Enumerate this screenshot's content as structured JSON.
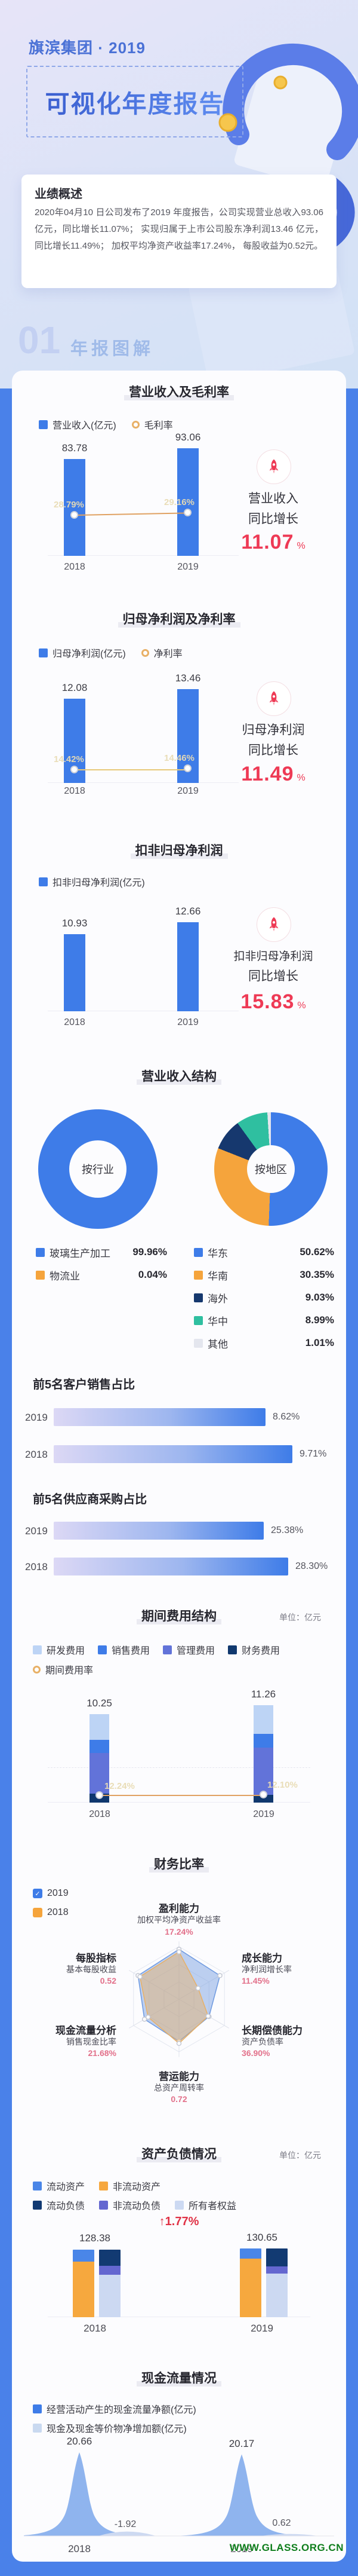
{
  "header": {
    "brand": "旗滨集团 · 2019",
    "title": "可视化年度报告"
  },
  "overview": {
    "heading": "业绩概述",
    "body": "2020年04月10 日公司发布了2019 年度报告，公司实现营业总收入93.06亿元，同比增长11.07%； 实现归属于上市公司股东净利润13.46 亿元，同比增长11.49%； 加权平均净资产收益率17.24%， 每股收益为0.52元。"
  },
  "badge": {
    "num": "01",
    "label": "年报图解"
  },
  "watermark": "WWW.GLASS.ORG.CN",
  "accent_colors": {
    "red": "#ee3a55",
    "blue": "#3e7ce8",
    "orange": "#f5a43c",
    "frame_blue": "#4a81e9"
  },
  "chart_data": [
    {
      "type": "bar",
      "title": "营业收入及毛利率",
      "legend": [
        "营业收入(亿元)",
        "毛利率"
      ],
      "bar_color": "#3e7ce8",
      "line_color": "#e0a263",
      "categories": [
        "2018",
        "2019"
      ],
      "bars": [
        83.78,
        93.06
      ],
      "line_labels": [
        "28.79%",
        "29.16%"
      ],
      "highlight": {
        "line1": "营业收入",
        "line2": "同比增长",
        "value": "11.07",
        "unit": "%"
      }
    },
    {
      "type": "bar",
      "title": "归母净利润及净利率",
      "legend": [
        "归母净利润(亿元)",
        "净利率"
      ],
      "bar_color": "#3e7ce8",
      "line_color": "#e8c878",
      "categories": [
        "2018",
        "2019"
      ],
      "bars": [
        12.08,
        13.46
      ],
      "line_labels": [
        "14.42%",
        "14.46%"
      ],
      "highlight": {
        "line1": "归母净利润",
        "line2": "同比增长",
        "value": "11.49",
        "unit": "%"
      }
    },
    {
      "type": "bar",
      "title": "扣非归母净利润",
      "legend": [
        "扣非归母净利润(亿元)"
      ],
      "bar_color": "#3e7ce8",
      "categories": [
        "2018",
        "2019"
      ],
      "bars": [
        10.93,
        12.66
      ],
      "highlight": {
        "line1": "扣非归母净利润",
        "line2": "同比增长",
        "value": "15.83",
        "unit": "%"
      }
    },
    {
      "type": "pie",
      "title": "营业收入结构",
      "donuts": [
        {
          "center": "按行业",
          "slices": [
            {
              "label": "玻璃生产加工",
              "pct": "99.96%",
              "value": 99.96,
              "color": "#3e7ce8"
            },
            {
              "label": "物流业",
              "pct": "0.04%",
              "value": 0.04,
              "color": "#f5a43c"
            }
          ]
        },
        {
          "center": "按地区",
          "slices": [
            {
              "label": "华东",
              "pct": "50.62%",
              "value": 50.62,
              "color": "#3e7ce8"
            },
            {
              "label": "华南",
              "pct": "30.35%",
              "value": 30.35,
              "color": "#f5a43c"
            },
            {
              "label": "海外",
              "pct": "9.03%",
              "value": 9.03,
              "color": "#16386e"
            },
            {
              "label": "华中",
              "pct": "8.99%",
              "value": 8.99,
              "color": "#2fbfa0"
            },
            {
              "label": "其他",
              "pct": "1.01%",
              "value": 1.01,
              "color": "#e4e6ee"
            }
          ]
        }
      ]
    },
    {
      "type": "bar",
      "title": "前5名客户销售占比",
      "rows": [
        {
          "year": "2019",
          "pct": "8.62%",
          "value": 8.62
        },
        {
          "year": "2018",
          "pct": "9.71%",
          "value": 9.71
        }
      ]
    },
    {
      "type": "bar",
      "title": "前5名供应商采购占比",
      "rows": [
        {
          "year": "2019",
          "pct": "25.38%",
          "value": 25.38
        },
        {
          "year": "2018",
          "pct": "28.30%",
          "value": 28.3
        }
      ]
    },
    {
      "type": "bar",
      "title": "期间费用结构",
      "unit": "单位：亿元",
      "legend": [
        "研发费用",
        "销售费用",
        "管理费用",
        "财务费用",
        "期间费用率"
      ],
      "colors": [
        "#bdd4f5",
        "#3e7ce8",
        "#6273d9",
        "#10386e"
      ],
      "line_color": "#e0a263",
      "categories": [
        "2018",
        "2019"
      ],
      "totals": [
        10.25,
        11.26
      ],
      "segments": [
        [
          2.99,
          1.49,
          4.74,
          1.03
        ],
        [
          3.3,
          1.62,
          5.45,
          0.89
        ]
      ],
      "line_labels": [
        "12.24%",
        "12.10%"
      ]
    },
    {
      "type": "radar",
      "title": "财务比率",
      "legend": [
        "2019",
        "2018"
      ],
      "legend_colors": [
        "#3e7ce8",
        "#f5a43c"
      ],
      "axes": [
        {
          "group": "盈利能力",
          "metric": "加权平均净资产收益率",
          "value": "17.24%"
        },
        {
          "group": "成长能力",
          "metric": "净利润增长率",
          "value": "11.45%"
        },
        {
          "group": "长期偿债能力",
          "metric": "资产负债率",
          "value": "36.90%"
        },
        {
          "group": "营运能力",
          "metric": "总资产周转率",
          "value": "0.72"
        },
        {
          "group": "现金流量分析",
          "metric": "销售现金比率",
          "value": "21.68%"
        },
        {
          "group": "每股指标",
          "metric": "基本每股收益",
          "value": "0.52"
        }
      ],
      "series": [
        {
          "name": "2019",
          "color": "#6f9ae0",
          "values": [
            0.95,
            0.9,
            0.66,
            0.8,
            0.76,
            0.9
          ]
        },
        {
          "name": "2018",
          "color": "#e8b066",
          "values": [
            0.9,
            0.42,
            0.64,
            0.84,
            0.68,
            0.86
          ]
        }
      ]
    },
    {
      "type": "bar",
      "title": "资产负债情况",
      "unit": "单位：亿元",
      "legend": [
        "流动资产",
        "非流动资产",
        "流动负债",
        "非流动负债",
        "所有者权益"
      ],
      "legend_colors": [
        "#4a86e8",
        "#f6a83e",
        "#123a72",
        "#6467d0",
        "#ccd9f2"
      ],
      "change": "1.77%",
      "years": [
        {
          "year": "2018",
          "total": 128.38,
          "assets": [
            22.6,
            105.78
          ],
          "liabilities": [
            30.8,
            17.3,
            80.28
          ]
        },
        {
          "year": "2019",
          "total": 130.65,
          "assets": [
            19.3,
            111.35
          ],
          "liabilities": [
            33.7,
            14.5,
            82.45
          ]
        }
      ]
    },
    {
      "type": "area",
      "title": "现金流量情况",
      "legend": [
        "经营活动产生的现金流量净额(亿元)",
        "现金及现金等价物净增加额(亿元)"
      ],
      "legend_colors": [
        "#3e7ce8",
        "#c9d9f0"
      ],
      "years": [
        {
          "year": "2018",
          "operating": 20.66,
          "net_increase": -1.92
        },
        {
          "year": "2019",
          "operating": 20.17,
          "net_increase": 0.62
        }
      ]
    }
  ]
}
